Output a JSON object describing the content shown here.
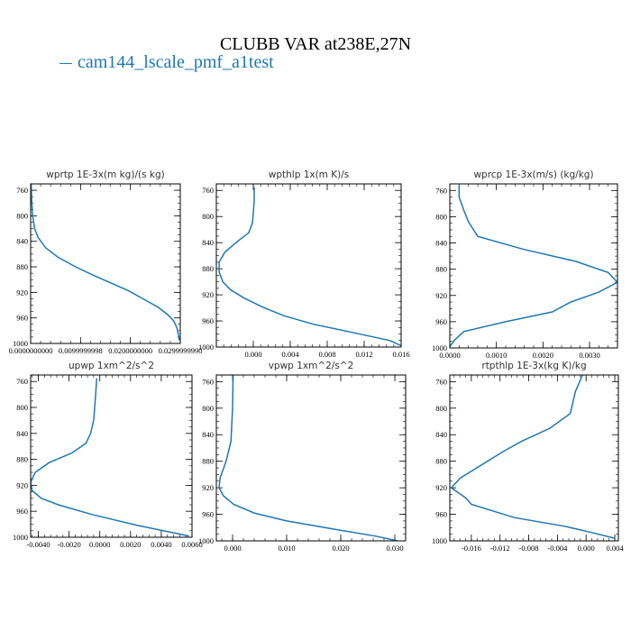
{
  "title": "CLUBB VAR at238E,27N",
  "legend": {
    "label": "cam144_lscale_pmf_a1test",
    "color": "#1f77b4"
  },
  "chart_data": [
    {
      "type": "line",
      "title": "wprtp  1E-3x(m kg)/(s kg)",
      "xlim": [
        0,
        0.03
      ],
      "ylim": [
        1000,
        750
      ],
      "xticks": [
        0.0,
        0.01,
        0.02,
        0.03
      ],
      "xtick_labels": [
        "0.0000000000",
        "0.0099999998",
        "0.0200000000",
        "0.0299999990"
      ],
      "yticks": [
        760,
        800,
        840,
        880,
        920,
        960,
        1000
      ],
      "series": [
        {
          "color": "#1f77b4",
          "x": [
            0.0001,
            0.0002,
            0.0004,
            0.0008,
            0.0015,
            0.003,
            0.0055,
            0.009,
            0.0125,
            0.016,
            0.0195,
            0.0225,
            0.0255,
            0.0275,
            0.0287,
            0.0293,
            0.0296,
            0.0298
          ],
          "y": [
            750,
            775,
            800,
            820,
            834,
            850,
            865,
            880,
            893,
            905,
            917,
            930,
            943,
            955,
            965,
            975,
            985,
            995
          ]
        }
      ]
    },
    {
      "type": "line",
      "title": "wpthlp  1x(m K)/s",
      "xlim": [
        -0.004,
        0.016
      ],
      "ylim": [
        1000,
        750
      ],
      "xticks": [
        0.0,
        0.004,
        0.008,
        0.012,
        0.016
      ],
      "xtick_labels": [
        "0.000",
        "0.004",
        "0.008",
        "0.012",
        "0.016"
      ],
      "yticks": [
        760,
        800,
        840,
        880,
        920,
        960,
        1000
      ],
      "series": [
        {
          "color": "#1f77b4",
          "x": [
            0.0001,
            0.0001,
            0.0,
            -0.0001,
            -0.0005,
            -0.0017,
            -0.0031,
            -0.0037,
            -0.0037,
            -0.0033,
            -0.0025,
            -0.001,
            0.0012,
            0.0033,
            0.0065,
            0.0105,
            0.0148,
            0.016
          ],
          "y": [
            755,
            775,
            795,
            810,
            825,
            838,
            855,
            870,
            885,
            900,
            912,
            925,
            940,
            952,
            965,
            977,
            990,
            998
          ]
        }
      ]
    },
    {
      "type": "line",
      "title": "wprcp  1E-3x(m/s) (kg/kg)",
      "xlim": [
        0,
        0.0036
      ],
      "ylim": [
        1000,
        750
      ],
      "xticks": [
        0.0,
        0.001,
        0.002,
        0.003
      ],
      "xtick_labels": [
        "0.0000",
        "0.0010",
        "0.0020",
        "0.0030"
      ],
      "yticks": [
        760,
        800,
        840,
        880,
        920,
        960,
        1000
      ],
      "series": [
        {
          "color": "#1f77b4",
          "x": [
            0.0002,
            0.0002,
            0.0003,
            0.0004,
            0.0006,
            0.0016,
            0.0027,
            0.0034,
            0.0036,
            0.0032,
            0.0026,
            0.0022,
            0.0012,
            0.0003,
            0.0001,
            0.0
          ],
          "y": [
            752,
            770,
            790,
            808,
            830,
            850,
            868,
            885,
            900,
            915,
            930,
            945,
            960,
            975,
            988,
            998
          ]
        }
      ]
    },
    {
      "type": "line",
      "title": "upwp  1xm^2/s^2",
      "xlim": [
        -0.0045,
        0.006
      ],
      "ylim": [
        1000,
        750
      ],
      "xticks": [
        -0.004,
        -0.002,
        0.0,
        0.002,
        0.004,
        0.006
      ],
      "xtick_labels": [
        "-0.0040",
        "-0.0020",
        "0.0000",
        "0.0020",
        "0.0040",
        "0.0060"
      ],
      "yticks": [
        760,
        800,
        840,
        880,
        920,
        960,
        1000
      ],
      "series": [
        {
          "color": "#1f77b4",
          "x": [
            -0.0002,
            -0.0003,
            -0.0004,
            -0.0006,
            -0.0009,
            -0.0018,
            -0.0033,
            -0.0042,
            -0.0045,
            -0.0044,
            -0.0038,
            -0.0027,
            -0.0005,
            0.0025,
            0.0058
          ],
          "y": [
            755,
            790,
            820,
            840,
            855,
            870,
            885,
            900,
            915,
            928,
            940,
            950,
            965,
            982,
            998
          ]
        }
      ]
    },
    {
      "type": "line",
      "title": "vpwp  1xm^2/s^2",
      "xlim": [
        -0.003,
        0.032
      ],
      "ylim": [
        1000,
        750
      ],
      "xticks": [
        0.0,
        0.01,
        0.02,
        0.03
      ],
      "xtick_labels": [
        "0.000",
        "0.010",
        "0.020",
        "0.030"
      ],
      "yticks": [
        760,
        800,
        840,
        880,
        920,
        960,
        1000
      ],
      "series": [
        {
          "color": "#1f77b4",
          "x": [
            0.0001,
            0.0,
            -0.0003,
            -0.0012,
            -0.0023,
            -0.0025,
            -0.0017,
            0.0002,
            0.004,
            0.01,
            0.0185,
            0.0265,
            0.0305
          ],
          "y": [
            750,
            800,
            850,
            880,
            905,
            920,
            932,
            945,
            958,
            970,
            982,
            993,
            1000
          ]
        }
      ]
    },
    {
      "type": "line",
      "title": "rtpthlp  1E-3x(kg K)/kg",
      "xlim": [
        -0.019,
        0.0045
      ],
      "ylim": [
        1000,
        750
      ],
      "xticks": [
        -0.016,
        -0.012,
        -0.008,
        -0.004,
        0.0,
        0.004
      ],
      "xtick_labels": [
        "-0.016",
        "-0.012",
        "-0.008",
        "-0.004",
        "0.000",
        "0.004"
      ],
      "yticks": [
        760,
        800,
        840,
        880,
        920,
        960,
        1000
      ],
      "series": [
        {
          "color": "#1f77b4",
          "x": [
            -0.0005,
            -0.0015,
            -0.0022,
            -0.005,
            -0.009,
            -0.0115,
            -0.0145,
            -0.0175,
            -0.0188,
            -0.0168,
            -0.016,
            -0.01,
            -0.003,
            0.001,
            0.004
          ],
          "y": [
            750,
            775,
            808,
            830,
            850,
            865,
            885,
            905,
            920,
            935,
            945,
            965,
            978,
            988,
            996
          ]
        }
      ]
    }
  ]
}
